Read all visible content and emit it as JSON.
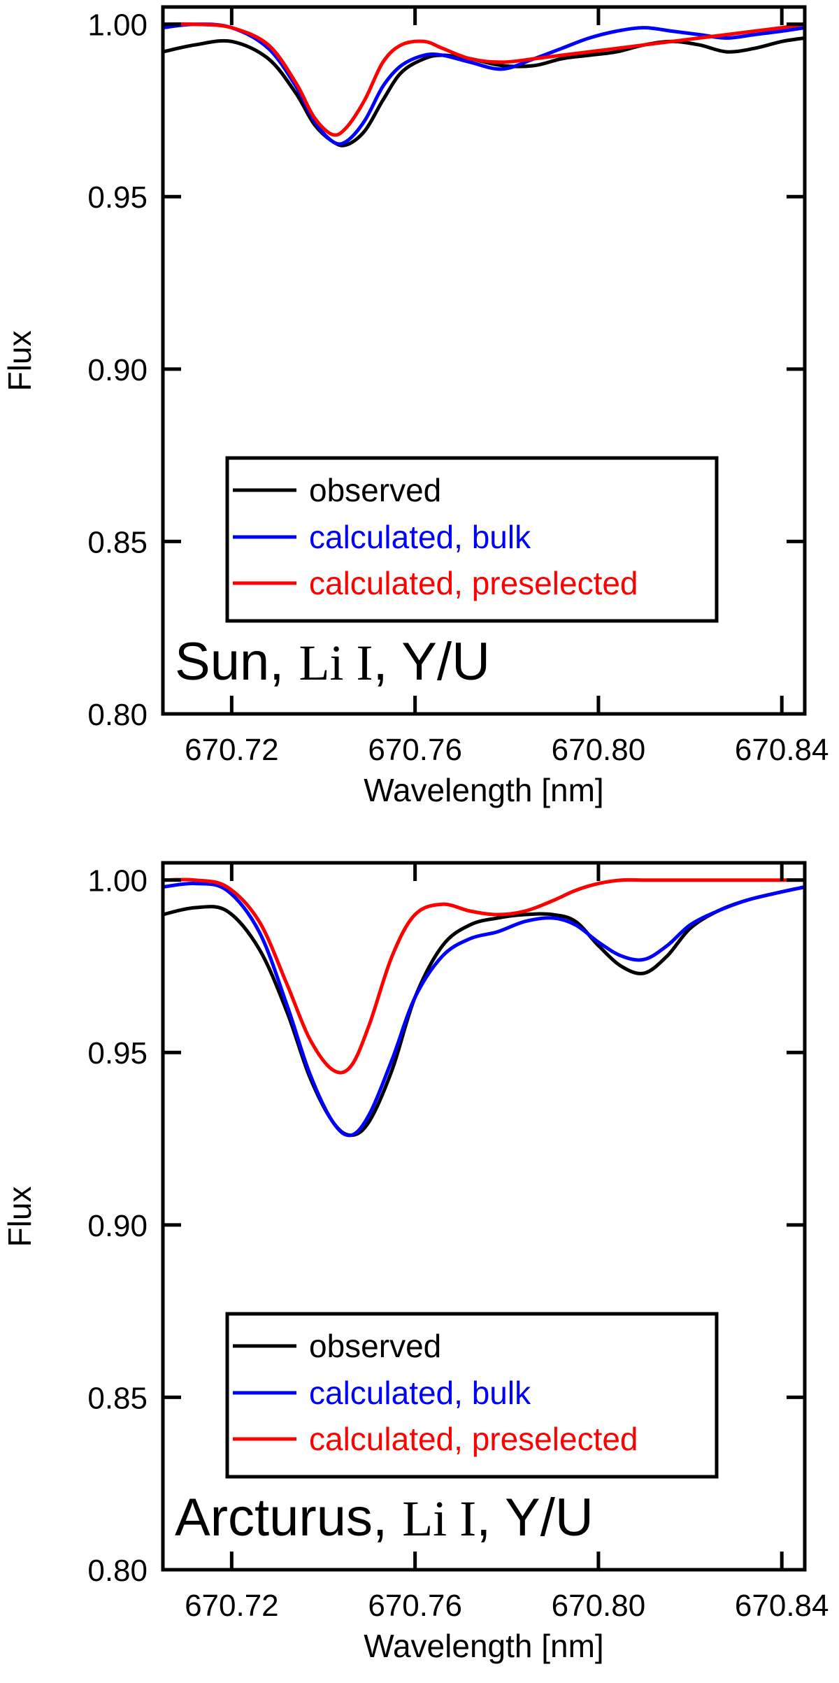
{
  "chart_data": [
    {
      "type": "line",
      "panel_label": {
        "prefix": "Sun, ",
        "ion": "Li I",
        "suffix": ", Y/U"
      },
      "xlabel": "Wavelength [nm]",
      "ylabel": "Flux",
      "xlim": [
        670.705,
        670.845
      ],
      "ylim": [
        0.8,
        1.005
      ],
      "xticks": [
        "670.72",
        "670.76",
        "670.80",
        "670.84"
      ],
      "yticks": [
        "0.80",
        "0.85",
        "0.90",
        "0.95",
        "1.00"
      ],
      "legend": {
        "position": "lower-center",
        "entries": [
          "observed",
          "calculated, bulk",
          "calculated, preselected"
        ]
      },
      "series": [
        {
          "name": "observed",
          "color": "#000000",
          "x": [
            670.705,
            670.712,
            670.72,
            670.728,
            670.734,
            670.738,
            670.742,
            670.745,
            670.749,
            670.753,
            670.757,
            670.762,
            670.766,
            670.772,
            670.779,
            670.786,
            670.792,
            670.798,
            670.804,
            670.81,
            670.816,
            670.822,
            670.828,
            670.834,
            670.84,
            670.845
          ],
          "y": [
            0.992,
            0.994,
            0.995,
            0.99,
            0.98,
            0.971,
            0.966,
            0.965,
            0.969,
            0.978,
            0.986,
            0.99,
            0.991,
            0.99,
            0.988,
            0.988,
            0.99,
            0.991,
            0.992,
            0.994,
            0.995,
            0.994,
            0.992,
            0.993,
            0.995,
            0.996
          ]
        },
        {
          "name": "calculated, bulk",
          "color": "#0000ff",
          "x": [
            670.705,
            670.712,
            670.72,
            670.728,
            670.734,
            670.738,
            670.742,
            670.745,
            670.749,
            670.753,
            670.757,
            670.762,
            670.766,
            670.772,
            670.779,
            670.786,
            670.792,
            670.798,
            670.804,
            670.81,
            670.816,
            670.822,
            670.828,
            670.834,
            670.84,
            670.845
          ],
          "y": [
            0.999,
            1.0,
            0.999,
            0.993,
            0.982,
            0.972,
            0.966,
            0.966,
            0.972,
            0.982,
            0.988,
            0.991,
            0.991,
            0.989,
            0.987,
            0.99,
            0.993,
            0.996,
            0.998,
            0.999,
            0.998,
            0.997,
            0.996,
            0.997,
            0.998,
            0.999
          ]
        },
        {
          "name": "calculated, preselected",
          "color": "#ff0000",
          "x": [
            670.705,
            670.712,
            670.72,
            670.728,
            670.734,
            670.738,
            670.742,
            670.745,
            670.749,
            670.753,
            670.757,
            670.762,
            670.766,
            670.772,
            670.779,
            670.786,
            670.792,
            670.798,
            670.804,
            670.81,
            670.816,
            670.822,
            670.828,
            670.834,
            670.84,
            670.845
          ],
          "y": [
            1.0,
            1.0,
            0.999,
            0.994,
            0.983,
            0.973,
            0.968,
            0.97,
            0.978,
            0.989,
            0.994,
            0.995,
            0.993,
            0.99,
            0.989,
            0.99,
            0.991,
            0.992,
            0.993,
            0.994,
            0.995,
            0.996,
            0.997,
            0.998,
            0.999,
            1.0
          ]
        }
      ]
    },
    {
      "type": "line",
      "panel_label": {
        "prefix": "Arcturus, ",
        "ion": "Li I",
        "suffix": ", Y/U"
      },
      "xlabel": "Wavelength [nm]",
      "ylabel": "Flux",
      "xlim": [
        670.705,
        670.845
      ],
      "ylim": [
        0.8,
        1.005
      ],
      "xticks": [
        "670.72",
        "670.76",
        "670.80",
        "670.84"
      ],
      "yticks": [
        "0.80",
        "0.85",
        "0.90",
        "0.95",
        "1.00"
      ],
      "legend": {
        "position": "lower-center",
        "entries": [
          "observed",
          "calculated, bulk",
          "calculated, preselected"
        ]
      },
      "series": [
        {
          "name": "observed",
          "color": "#000000",
          "x": [
            670.705,
            670.712,
            670.719,
            670.726,
            670.732,
            670.737,
            670.742,
            670.746,
            670.75,
            670.755,
            670.76,
            670.766,
            670.772,
            670.778,
            670.784,
            670.79,
            670.795,
            670.8,
            670.805,
            670.81,
            670.815,
            670.82,
            670.826,
            670.832,
            670.838,
            670.845
          ],
          "y": [
            0.99,
            0.992,
            0.991,
            0.98,
            0.962,
            0.943,
            0.93,
            0.926,
            0.93,
            0.945,
            0.966,
            0.981,
            0.987,
            0.989,
            0.99,
            0.99,
            0.988,
            0.981,
            0.975,
            0.973,
            0.978,
            0.986,
            0.991,
            0.994,
            0.996,
            0.998
          ]
        },
        {
          "name": "calculated, bulk",
          "color": "#0000ff",
          "x": [
            670.705,
            670.712,
            670.719,
            670.726,
            670.732,
            670.737,
            670.742,
            670.746,
            670.75,
            670.755,
            670.76,
            670.766,
            670.772,
            670.778,
            670.784,
            670.79,
            670.795,
            670.8,
            670.805,
            670.81,
            670.815,
            670.82,
            670.826,
            670.832,
            670.838,
            670.845
          ],
          "y": [
            0.998,
            0.999,
            0.997,
            0.985,
            0.964,
            0.944,
            0.93,
            0.926,
            0.932,
            0.948,
            0.966,
            0.978,
            0.983,
            0.985,
            0.988,
            0.989,
            0.987,
            0.982,
            0.978,
            0.977,
            0.981,
            0.987,
            0.991,
            0.994,
            0.996,
            0.998
          ]
        },
        {
          "name": "calculated, preselected",
          "color": "#ff0000",
          "x": [
            670.705,
            670.712,
            670.719,
            670.726,
            670.732,
            670.737,
            670.742,
            670.746,
            670.75,
            670.755,
            670.76,
            670.766,
            670.772,
            670.778,
            670.784,
            670.79,
            670.795,
            670.8,
            670.805,
            670.81,
            670.815,
            670.82,
            670.826,
            670.832,
            670.838,
            670.845
          ],
          "y": [
            1.0,
            1.0,
            0.998,
            0.988,
            0.97,
            0.954,
            0.945,
            0.946,
            0.958,
            0.978,
            0.99,
            0.993,
            0.991,
            0.99,
            0.991,
            0.994,
            0.997,
            0.999,
            1.0,
            1.0,
            1.0,
            1.0,
            1.0,
            1.0,
            1.0,
            1.0
          ]
        }
      ]
    }
  ]
}
